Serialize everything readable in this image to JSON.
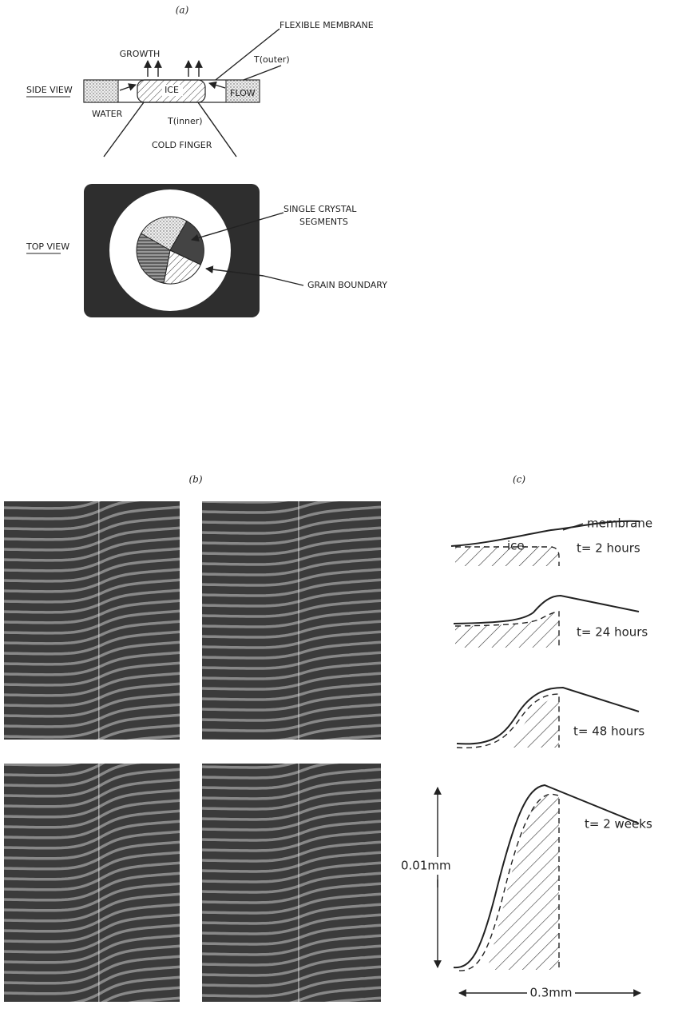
{
  "panel_a": {
    "label": "(a)",
    "side_view": {
      "title": "SIDE VIEW",
      "flexible_membrane": "FLEXIBLE MEMBRANE",
      "growth": "GROWTH",
      "t_outer": "T(outer)",
      "ice": "ICE",
      "flow": "FLOW",
      "water": "WATER",
      "t_inner": "T(inner)",
      "cold_finger": "COLD FINGER"
    },
    "top_view": {
      "title": "TOP VIEW",
      "segments": [
        "SINGLE CRYSTAL",
        "SEGMENTS"
      ],
      "grain_boundary": "GRAIN BOUNDARY"
    }
  },
  "panel_b": {
    "label": "(b)"
  },
  "panel_c": {
    "label": "(c)",
    "membrane": "membrane",
    "ice": "ice",
    "times": [
      "t= 2 hours",
      "t= 24 hours",
      "t= 48 hours",
      "t= 2 weeks"
    ],
    "height_scale": "0.01mm",
    "width_scale": "0.3mm"
  }
}
